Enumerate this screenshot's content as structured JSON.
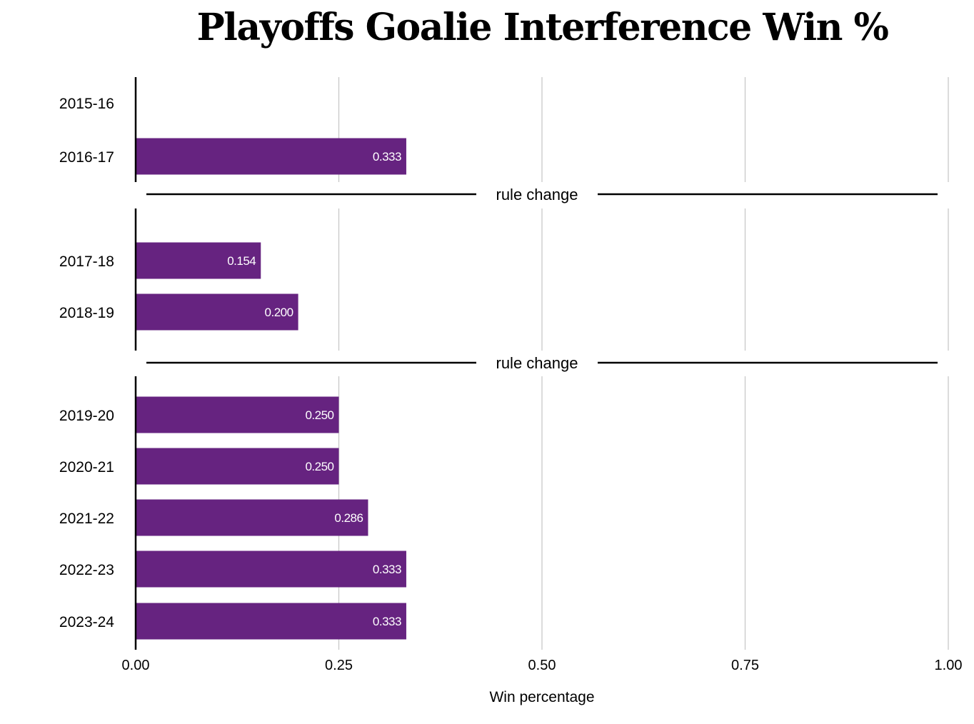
{
  "chart_data": {
    "type": "bar",
    "orientation": "horizontal",
    "title": "Playoffs Goalie Interference Win %",
    "xlabel": "Win percentage",
    "ylabel": "",
    "xlim": [
      0,
      1
    ],
    "xticks": [
      0,
      0.25,
      0.5,
      0.75,
      1.0
    ],
    "xtick_labels": [
      "0.00",
      "0.25",
      "0.50",
      "0.75",
      "1.00"
    ],
    "grid": "vertical",
    "bar_color": "#662380",
    "separator_label": "rule change",
    "groups": [
      {
        "categories": [
          "2015-16",
          "2016-17"
        ],
        "values": [
          null,
          0.333
        ],
        "labels": [
          "",
          "0.333"
        ]
      },
      {
        "categories": [
          "2017-18",
          "2018-19"
        ],
        "values": [
          0.154,
          0.2
        ],
        "labels": [
          "0.154",
          "0.200"
        ]
      },
      {
        "categories": [
          "2019-20",
          "2020-21",
          "2021-22",
          "2022-23",
          "2023-24"
        ],
        "values": [
          0.25,
          0.25,
          0.286,
          0.333,
          0.333
        ],
        "labels": [
          "0.250",
          "0.250",
          "0.286",
          "0.333",
          "0.333"
        ]
      }
    ]
  }
}
